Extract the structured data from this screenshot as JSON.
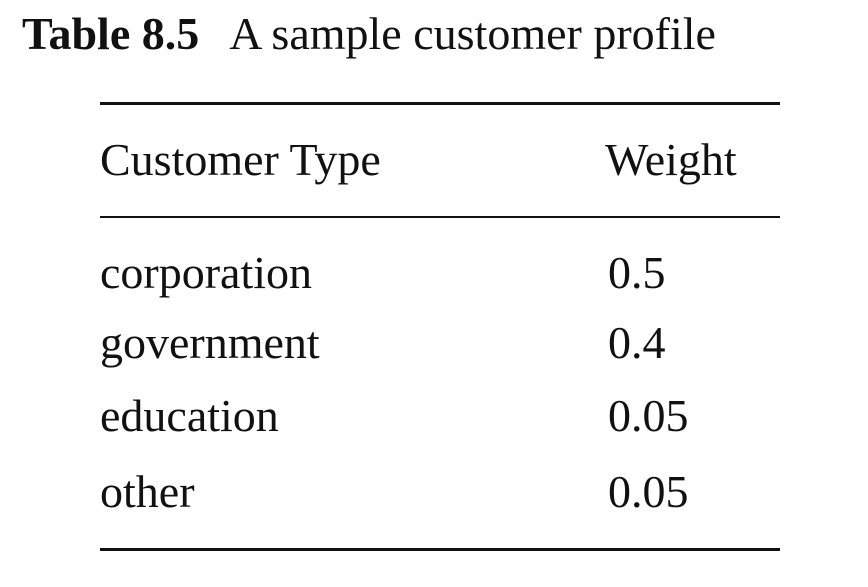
{
  "caption": {
    "label": "Table 8.5",
    "title": "A sample customer profile"
  },
  "table": {
    "headers": [
      "Customer Type",
      "Weight"
    ],
    "rows": [
      [
        "corporation",
        "0.5"
      ],
      [
        "government",
        "0.4"
      ],
      [
        "education",
        "0.05"
      ],
      [
        "other",
        "0.05"
      ]
    ]
  }
}
